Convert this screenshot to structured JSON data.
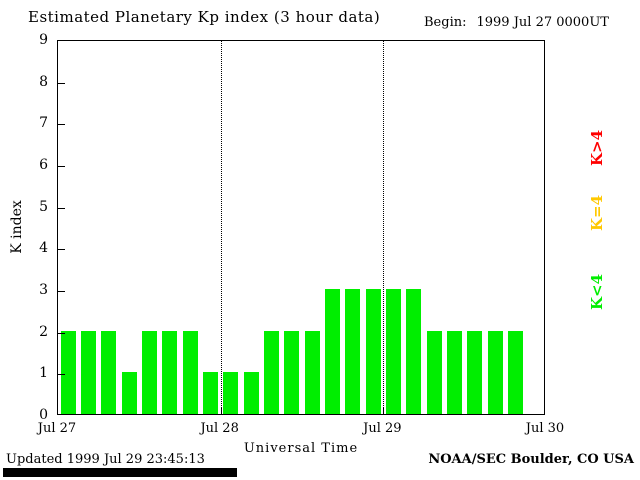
{
  "title": "Estimated Planetary Kp index (3 hour data)",
  "begin": {
    "label": "Begin:",
    "value": "1999 Jul 27 0000UT"
  },
  "axes": {
    "y_title": "K index",
    "x_title": "Universal Time"
  },
  "legend": [
    {
      "label": "K>4",
      "color": "#ff0000"
    },
    {
      "label": "K=4",
      "color": "#ffc800"
    },
    {
      "label": "K<4",
      "color": "#00ee00"
    }
  ],
  "footer": {
    "updated": "Updated 1999 Jul 29 23:45:13",
    "credit": "NOAA/SEC Boulder, CO USA"
  },
  "chart_data": {
    "type": "bar",
    "title": "Estimated Planetary Kp index (3 hour data)",
    "xlabel": "Universal Time",
    "ylabel": "K index",
    "ylim": [
      0,
      9
    ],
    "yticks": [
      0,
      1,
      2,
      3,
      4,
      5,
      6,
      7,
      8,
      9
    ],
    "x_day_labels": [
      "Jul 27",
      "Jul 28",
      "Jul 29",
      "Jul 30"
    ],
    "bars_per_day": 8,
    "interval_hours": 3,
    "bar_color": "#00ee00",
    "grid": "dotted vertical lines at day boundaries",
    "legend_position": "right, rotated 90deg",
    "values_by_day": [
      {
        "date": "Jul 27",
        "values": [
          2,
          2,
          2,
          1,
          2,
          2,
          2,
          1
        ]
      },
      {
        "date": "Jul 28",
        "values": [
          1,
          1,
          2,
          2,
          2,
          3,
          3,
          3
        ]
      },
      {
        "date": "Jul 29",
        "values": [
          3,
          3,
          2,
          2,
          2,
          2,
          2
        ]
      }
    ]
  }
}
